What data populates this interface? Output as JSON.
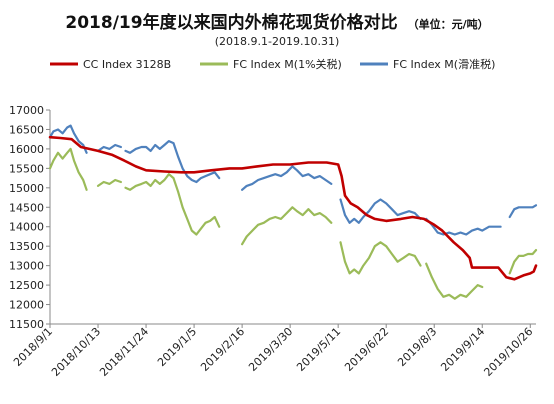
{
  "chart_data": {
    "type": "line",
    "title": "2018/19年度以来国内外棉花现货价格对比",
    "unit_note": "（单位：元/吨）",
    "subtitle": "(2018.9.1-2019.10.31)",
    "ylim": [
      11500,
      17000
    ],
    "y_ticks": [
      11500,
      12000,
      12500,
      13000,
      13500,
      14000,
      14500,
      15000,
      15500,
      16000,
      16500,
      17000
    ],
    "x_ticks": [
      "2018/9/1",
      "2018/10/13",
      "2018/11/24",
      "2019/1/5",
      "2019/2/16",
      "2019/3/30",
      "2019/5/11",
      "2019/6/22",
      "2019/8/3",
      "2019/9/14",
      "2019/10/26"
    ],
    "x_range": [
      "2018/9/1",
      "2019/10/31"
    ],
    "grid": false,
    "legend_position": "top",
    "series": [
      {
        "name": "CC Index 3128B",
        "color": "#c00000",
        "points": [
          [
            "2018/9/1",
            16300
          ],
          [
            "2018/9/10",
            16280
          ],
          [
            "2018/9/20",
            16250
          ],
          [
            "2018/9/28",
            16050
          ],
          [
            "2018/10/13",
            15950
          ],
          [
            "2018/10/25",
            15850
          ],
          [
            "2018/11/5",
            15700
          ],
          [
            "2018/11/15",
            15550
          ],
          [
            "2018/11/24",
            15450
          ],
          [
            "2018/12/10",
            15420
          ],
          [
            "2018/12/25",
            15400
          ],
          [
            "2019/1/5",
            15400
          ],
          [
            "2019/1/20",
            15450
          ],
          [
            "2019/2/5",
            15500
          ],
          [
            "2019/2/16",
            15500
          ],
          [
            "2019/3/1",
            15550
          ],
          [
            "2019/3/15",
            15600
          ],
          [
            "2019/3/30",
            15600
          ],
          [
            "2019/4/15",
            15650
          ],
          [
            "2019/5/1",
            15650
          ],
          [
            "2019/5/11",
            15600
          ],
          [
            "2019/5/14",
            15300
          ],
          [
            "2019/5/17",
            14800
          ],
          [
            "2019/5/22",
            14600
          ],
          [
            "2019/5/28",
            14500
          ],
          [
            "2019/6/5",
            14300
          ],
          [
            "2019/6/12",
            14200
          ],
          [
            "2019/6/22",
            14150
          ],
          [
            "2019/7/5",
            14200
          ],
          [
            "2019/7/15",
            14250
          ],
          [
            "2019/7/25",
            14200
          ],
          [
            "2019/8/3",
            14050
          ],
          [
            "2019/8/10",
            13900
          ],
          [
            "2019/8/20",
            13600
          ],
          [
            "2019/8/28",
            13400
          ],
          [
            "2019/9/3",
            13200
          ],
          [
            "2019/9/5",
            12950
          ],
          [
            "2019/9/14",
            12950
          ],
          [
            "2019/9/22",
            12950
          ],
          [
            "2019/9/28",
            12950
          ],
          [
            "2019/10/5",
            12700
          ],
          [
            "2019/10/12",
            12650
          ],
          [
            "2019/10/20",
            12750
          ],
          [
            "2019/10/26",
            12800
          ],
          [
            "2019/10/29",
            12850
          ],
          [
            "2019/10/31",
            13000
          ]
        ]
      },
      {
        "name": "FC Index M(1%关税)",
        "color": "#9bbb59",
        "segments": [
          [
            [
              "2018/9/1",
              15500
            ],
            [
              "2018/9/4",
              15700
            ],
            [
              "2018/9/8",
              15900
            ],
            [
              "2018/9/12",
              15750
            ],
            [
              "2018/9/16",
              15900
            ],
            [
              "2018/9/19",
              16000
            ],
            [
              "2018/9/22",
              15700
            ],
            [
              "2018/9/26",
              15400
            ],
            [
              "2018/9/30",
              15200
            ],
            [
              "2018/10/3",
              14950
            ]
          ],
          [
            [
              "2018/10/13",
              15050
            ],
            [
              "2018/10/18",
              15150
            ],
            [
              "2018/10/23",
              15100
            ],
            [
              "2018/10/28",
              15200
            ],
            [
              "2018/11/2",
              15150
            ]
          ],
          [
            [
              "2018/11/6",
              15000
            ],
            [
              "2018/11/10",
              14950
            ],
            [
              "2018/11/15",
              15050
            ],
            [
              "2018/11/20",
              15100
            ],
            [
              "2018/11/24",
              15150
            ],
            [
              "2018/11/28",
              15050
            ],
            [
              "2018/12/2",
              15200
            ],
            [
              "2018/12/6",
              15100
            ],
            [
              "2018/12/10",
              15200
            ],
            [
              "2018/12/14",
              15350
            ],
            [
              "2018/12/18",
              15250
            ],
            [
              "2018/12/22",
              14900
            ],
            [
              "2018/12/26",
              14500
            ],
            [
              "2018/12/30",
              14200
            ],
            [
              "2019/1/3",
              13900
            ],
            [
              "2019/1/7",
              13800
            ],
            [
              "2019/1/11",
              13950
            ],
            [
              "2019/1/15",
              14100
            ],
            [
              "2019/1/19",
              14150
            ],
            [
              "2019/1/23",
              14250
            ],
            [
              "2019/1/27",
              14000
            ]
          ],
          [
            [
              "2019/2/16",
              13550
            ],
            [
              "2019/2/20",
              13750
            ],
            [
              "2019/2/25",
              13900
            ],
            [
              "2019/3/2",
              14050
            ],
            [
              "2019/3/7",
              14100
            ],
            [
              "2019/3/12",
              14200
            ],
            [
              "2019/3/17",
              14250
            ],
            [
              "2019/3/22",
              14200
            ],
            [
              "2019/3/27",
              14350
            ],
            [
              "2019/4/1",
              14500
            ],
            [
              "2019/4/5",
              14400
            ],
            [
              "2019/4/10",
              14300
            ],
            [
              "2019/4/15",
              14450
            ],
            [
              "2019/4/20",
              14300
            ],
            [
              "2019/4/25",
              14350
            ],
            [
              "2019/4/30",
              14250
            ],
            [
              "2019/5/5",
              14100
            ]
          ],
          [
            [
              "2019/5/13",
              13600
            ],
            [
              "2019/5/17",
              13100
            ],
            [
              "2019/5/21",
              12800
            ],
            [
              "2019/5/25",
              12900
            ],
            [
              "2019/5/29",
              12800
            ],
            [
              "2019/6/2",
              13000
            ],
            [
              "2019/6/7",
              13200
            ],
            [
              "2019/6/12",
              13500
            ],
            [
              "2019/6/17",
              13600
            ],
            [
              "2019/6/22",
              13500
            ],
            [
              "2019/6/27",
              13300
            ],
            [
              "2019/7/2",
              13100
            ],
            [
              "2019/7/7",
              13200
            ],
            [
              "2019/7/12",
              13300
            ],
            [
              "2019/7/17",
              13250
            ],
            [
              "2019/7/22",
              13000
            ]
          ],
          [
            [
              "2019/7/27",
              13050
            ],
            [
              "2019/8/1",
              12700
            ],
            [
              "2019/8/6",
              12400
            ],
            [
              "2019/8/11",
              12200
            ],
            [
              "2019/8/16",
              12250
            ],
            [
              "2019/8/21",
              12150
            ],
            [
              "2019/8/26",
              12250
            ],
            [
              "2019/8/31",
              12200
            ],
            [
              "2019/9/5",
              12350
            ],
            [
              "2019/9/10",
              12500
            ],
            [
              "2019/9/14",
              12450
            ]
          ],
          [
            [
              "2019/10/8",
              12800
            ],
            [
              "2019/10/12",
              13100
            ],
            [
              "2019/10/16",
              13250
            ],
            [
              "2019/10/20",
              13250
            ],
            [
              "2019/10/24",
              13300
            ],
            [
              "2019/10/28",
              13300
            ],
            [
              "2019/10/31",
              13400
            ]
          ]
        ]
      },
      {
        "name": "FC Index M(滑准税)",
        "color": "#4f81bd",
        "segments": [
          [
            [
              "2018/9/1",
              16300
            ],
            [
              "2018/9/4",
              16450
            ],
            [
              "2018/9/8",
              16500
            ],
            [
              "2018/9/12",
              16400
            ],
            [
              "2018/9/16",
              16550
            ],
            [
              "2018/9/19",
              16600
            ],
            [
              "2018/9/22",
              16400
            ],
            [
              "2018/9/26",
              16200
            ],
            [
              "2018/9/30",
              16100
            ],
            [
              "2018/10/3",
              15900
            ]
          ],
          [
            [
              "2018/10/13",
              15950
            ],
            [
              "2018/10/18",
              16050
            ],
            [
              "2018/10/23",
              16000
            ],
            [
              "2018/10/28",
              16100
            ],
            [
              "2018/11/2",
              16050
            ]
          ],
          [
            [
              "2018/11/6",
              15950
            ],
            [
              "2018/11/10",
              15900
            ],
            [
              "2018/11/15",
              16000
            ],
            [
              "2018/11/20",
              16050
            ],
            [
              "2018/11/24",
              16050
            ],
            [
              "2018/11/28",
              15950
            ],
            [
              "2018/12/2",
              16100
            ],
            [
              "2018/12/6",
              16000
            ],
            [
              "2018/12/10",
              16100
            ],
            [
              "2018/12/14",
              16200
            ],
            [
              "2018/12/18",
              16150
            ],
            [
              "2018/12/22",
              15800
            ],
            [
              "2018/12/26",
              15500
            ],
            [
              "2018/12/30",
              15300
            ],
            [
              "2019/1/3",
              15200
            ],
            [
              "2019/1/7",
              15150
            ],
            [
              "2019/1/11",
              15250
            ],
            [
              "2019/1/15",
              15300
            ],
            [
              "2019/1/19",
              15350
            ],
            [
              "2019/1/23",
              15400
            ],
            [
              "2019/1/27",
              15250
            ]
          ],
          [
            [
              "2019/2/16",
              14950
            ],
            [
              "2019/2/20",
              15050
            ],
            [
              "2019/2/25",
              15100
            ],
            [
              "2019/3/2",
              15200
            ],
            [
              "2019/3/7",
              15250
            ],
            [
              "2019/3/12",
              15300
            ],
            [
              "2019/3/17",
              15350
            ],
            [
              "2019/3/22",
              15300
            ],
            [
              "2019/3/27",
              15400
            ],
            [
              "2019/4/1",
              15550
            ],
            [
              "2019/4/5",
              15450
            ],
            [
              "2019/4/10",
              15300
            ],
            [
              "2019/4/15",
              15350
            ],
            [
              "2019/4/20",
              15250
            ],
            [
              "2019/4/25",
              15300
            ],
            [
              "2019/4/30",
              15200
            ],
            [
              "2019/5/5",
              15100
            ]
          ],
          [
            [
              "2019/5/13",
              14700
            ],
            [
              "2019/5/17",
              14300
            ],
            [
              "2019/5/21",
              14100
            ],
            [
              "2019/5/25",
              14200
            ],
            [
              "2019/5/29",
              14100
            ],
            [
              "2019/6/2",
              14250
            ],
            [
              "2019/6/7",
              14400
            ],
            [
              "2019/6/12",
              14600
            ],
            [
              "2019/6/17",
              14700
            ],
            [
              "2019/6/22",
              14600
            ],
            [
              "2019/6/27",
              14450
            ],
            [
              "2019/7/2",
              14300
            ],
            [
              "2019/7/7",
              14350
            ],
            [
              "2019/7/12",
              14400
            ],
            [
              "2019/7/17",
              14350
            ],
            [
              "2019/7/22",
              14200
            ]
          ],
          [
            [
              "2019/7/27",
              14200
            ],
            [
              "2019/8/1",
              14050
            ],
            [
              "2019/8/6",
              13850
            ],
            [
              "2019/8/11",
              13800
            ],
            [
              "2019/8/16",
              13850
            ],
            [
              "2019/8/21",
              13800
            ],
            [
              "2019/8/26",
              13850
            ],
            [
              "2019/8/31",
              13800
            ],
            [
              "2019/9/5",
              13900
            ],
            [
              "2019/9/10",
              13950
            ],
            [
              "2019/9/14",
              13900
            ],
            [
              "2019/9/20",
              14000
            ],
            [
              "2019/9/26",
              14000
            ],
            [
              "2019/9/30",
              14000
            ]
          ],
          [
            [
              "2019/10/8",
              14250
            ],
            [
              "2019/10/12",
              14450
            ],
            [
              "2019/10/16",
              14500
            ],
            [
              "2019/10/20",
              14500
            ],
            [
              "2019/10/24",
              14500
            ],
            [
              "2019/10/28",
              14500
            ],
            [
              "2019/10/31",
              14550
            ]
          ]
        ]
      }
    ]
  }
}
